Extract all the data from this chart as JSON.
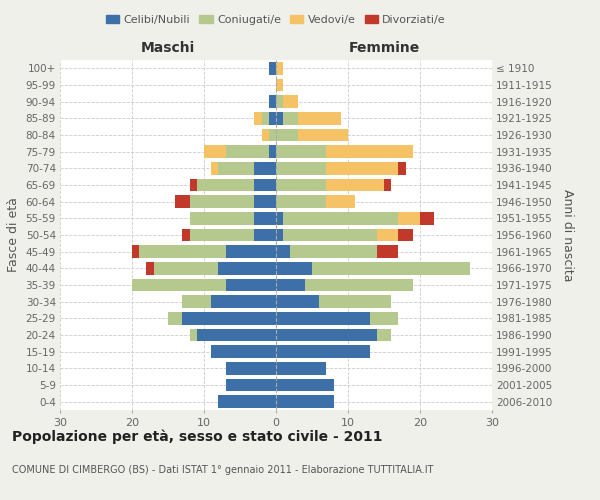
{
  "age_groups": [
    "100+",
    "95-99",
    "90-94",
    "85-89",
    "80-84",
    "75-79",
    "70-74",
    "65-69",
    "60-64",
    "55-59",
    "50-54",
    "45-49",
    "40-44",
    "35-39",
    "30-34",
    "25-29",
    "20-24",
    "15-19",
    "10-14",
    "5-9",
    "0-4"
  ],
  "birth_years": [
    "≤ 1910",
    "1911-1915",
    "1916-1920",
    "1921-1925",
    "1926-1930",
    "1931-1935",
    "1936-1940",
    "1941-1945",
    "1946-1950",
    "1951-1955",
    "1956-1960",
    "1961-1965",
    "1966-1970",
    "1971-1975",
    "1976-1980",
    "1981-1985",
    "1986-1990",
    "1991-1995",
    "1996-2000",
    "2001-2005",
    "2006-2010"
  ],
  "male": {
    "celibi": [
      1,
      0,
      1,
      1,
      0,
      1,
      3,
      3,
      3,
      3,
      3,
      7,
      8,
      7,
      9,
      13,
      11,
      9,
      7,
      7,
      8
    ],
    "coniugati": [
      0,
      0,
      0,
      1,
      1,
      6,
      5,
      8,
      9,
      9,
      9,
      12,
      9,
      13,
      4,
      2,
      1,
      0,
      0,
      0,
      0
    ],
    "vedovi": [
      0,
      0,
      0,
      1,
      1,
      3,
      1,
      0,
      0,
      0,
      0,
      0,
      0,
      0,
      0,
      0,
      0,
      0,
      0,
      0,
      0
    ],
    "divorziati": [
      0,
      0,
      0,
      0,
      0,
      0,
      0,
      1,
      2,
      0,
      1,
      1,
      1,
      0,
      0,
      0,
      0,
      0,
      0,
      0,
      0
    ]
  },
  "female": {
    "nubili": [
      0,
      0,
      0,
      1,
      0,
      0,
      0,
      0,
      0,
      1,
      1,
      2,
      5,
      4,
      6,
      13,
      14,
      13,
      7,
      8,
      8
    ],
    "coniugate": [
      0,
      0,
      1,
      2,
      3,
      7,
      7,
      7,
      7,
      16,
      13,
      12,
      22,
      15,
      10,
      4,
      2,
      0,
      0,
      0,
      0
    ],
    "vedove": [
      1,
      1,
      2,
      6,
      7,
      12,
      10,
      8,
      4,
      3,
      3,
      0,
      0,
      0,
      0,
      0,
      0,
      0,
      0,
      0,
      0
    ],
    "divorziate": [
      0,
      0,
      0,
      0,
      0,
      0,
      1,
      1,
      0,
      2,
      2,
      3,
      0,
      0,
      0,
      0,
      0,
      0,
      0,
      0,
      0
    ]
  },
  "colors": {
    "celibi": "#3d6fa8",
    "coniugati": "#b5c98e",
    "vedovi": "#f5c265",
    "divorziati": "#c0392b"
  },
  "xlim": 30,
  "title": "Popolazione per età, sesso e stato civile - 2011",
  "subtitle": "COMUNE DI CIMBERGO (BS) - Dati ISTAT 1° gennaio 2011 - Elaborazione TUTTITALIA.IT",
  "ylabel_left": "Fasce di età",
  "ylabel_right": "Anni di nascita",
  "xlabel_male": "Maschi",
  "xlabel_female": "Femmine",
  "bg_color": "#f0f0eb",
  "plot_bg_color": "#ffffff"
}
